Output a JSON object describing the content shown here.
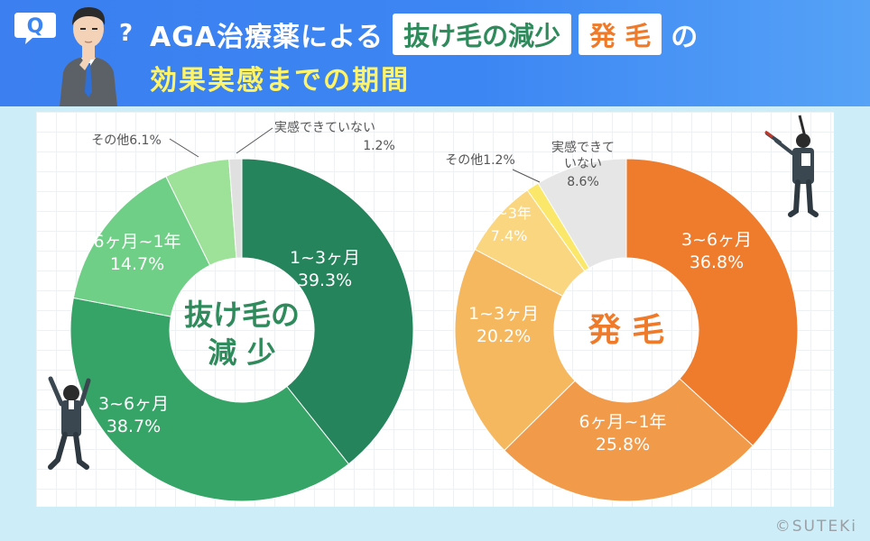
{
  "header": {
    "q_label": "Q",
    "title_prefix": "AGA治療薬による",
    "title_box1": "抜け毛の減少",
    "title_box2": "発 毛",
    "title_suffix": "の",
    "title_line2": "効果実感までの期間",
    "question_mark": "?"
  },
  "colors": {
    "header_blue": "#3c86f3",
    "green_dark": "#2f8a5c",
    "orange": "#ef7a2a",
    "subtitle_yellow": "#fff466"
  },
  "chart_data": [
    {
      "type": "pie",
      "variant": "donut",
      "center_label_line1": "抜け毛の",
      "center_label_line2": "減 少",
      "slices": [
        {
          "label": "1~3ヶ月",
          "value": 39.3,
          "value_label": "39.3%",
          "color": "#25845b"
        },
        {
          "label": "3~6ヶ月",
          "value": 38.7,
          "value_label": "38.7%",
          "color": "#36a467"
        },
        {
          "label": "6ヶ月~1年",
          "value": 14.7,
          "value_label": "14.7%",
          "color": "#6fcf86"
        },
        {
          "label": "その他",
          "value": 6.1,
          "value_label": "6.1%",
          "color": "#9ee29a"
        },
        {
          "label": "実感できていない",
          "value": 1.2,
          "value_label": "1.2%",
          "color": "#e0e0e0"
        }
      ]
    },
    {
      "type": "pie",
      "variant": "donut",
      "center_label_line1": "発 毛",
      "slices": [
        {
          "label": "3~6ヶ月",
          "value": 36.8,
          "value_label": "36.8%",
          "color": "#ef7c2c"
        },
        {
          "label": "6ヶ月~1年",
          "value": 25.8,
          "value_label": "25.8%",
          "color": "#f19a4a"
        },
        {
          "label": "1~3ヶ月",
          "value": 20.2,
          "value_label": "20.2%",
          "color": "#f6b85e"
        },
        {
          "label": "1~3年",
          "value": 7.4,
          "value_label": "7.4%",
          "color": "#fbd680"
        },
        {
          "label": "その他",
          "value": 1.2,
          "value_label": "1.2%",
          "color": "#fbe86a"
        },
        {
          "label": "実感できていない",
          "value": 8.6,
          "value_label": "8.6%",
          "color": "#e6e6e6"
        }
      ]
    }
  ],
  "footer": {
    "copyright": "©SUTEKi"
  }
}
